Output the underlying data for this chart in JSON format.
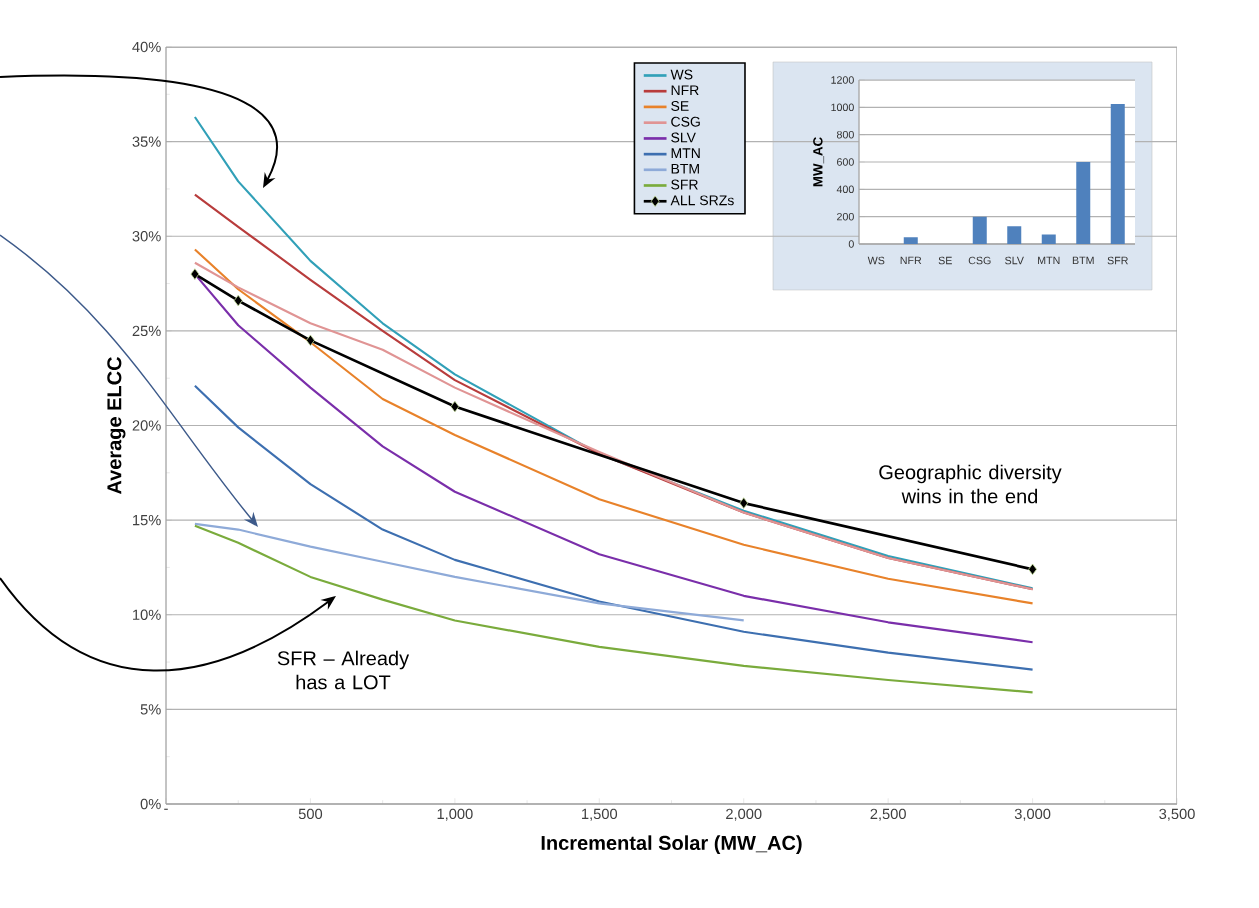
{
  "chart_data": [
    {
      "type": "line",
      "xlabel": "Incremental Solar (MW_AC)",
      "ylabel": "Average ELCC",
      "x": [
        100,
        250,
        500,
        750,
        1000,
        1500,
        2000,
        2500,
        3000
      ],
      "xlim": [
        0,
        3500
      ],
      "xticks": [
        {
          "value": 0,
          "label": "-"
        },
        500,
        {
          "value": 1000,
          "label": "1,000"
        },
        {
          "value": 1500,
          "label": "1,500"
        },
        {
          "value": 2000,
          "label": "2,000"
        },
        {
          "value": 2500,
          "label": "2,500"
        },
        {
          "value": 3000,
          "label": "3,000"
        },
        {
          "value": 3500,
          "label": "3,500"
        }
      ],
      "ylim": [
        0,
        40
      ],
      "yticks": [
        {
          "value": 0,
          "label": "0%"
        },
        {
          "value": 5,
          "label": "5%"
        },
        {
          "value": 10,
          "label": "10%"
        },
        {
          "value": 15,
          "label": "15%"
        },
        {
          "value": 20,
          "label": "20%"
        },
        {
          "value": 25,
          "label": "25%"
        },
        {
          "value": 30,
          "label": "30%"
        },
        {
          "value": 35,
          "label": "35%"
        },
        {
          "value": 40,
          "label": "40%"
        }
      ],
      "grid": "y",
      "legend": "top",
      "marker": "none",
      "line_style": "solid",
      "series": [
        {
          "name": "WS",
          "color": "#31a0b8",
          "values": [
            36.3,
            32.9,
            28.7,
            25.4,
            22.7,
            18.5,
            15.5,
            13.1,
            11.4
          ]
        },
        {
          "name": "NFR",
          "color": "#b83c3c",
          "values": [
            32.2,
            30.5,
            27.7,
            25.0,
            22.4,
            18.5,
            15.4,
            13.0,
            11.35
          ]
        },
        {
          "name": "SE",
          "color": "#e8822a",
          "values": [
            29.3,
            27.2,
            24.4,
            21.4,
            19.5,
            16.1,
            13.7,
            11.9,
            10.6
          ]
        },
        {
          "name": "CSG",
          "color": "#e09494",
          "values": [
            28.6,
            27.3,
            25.4,
            24.0,
            22.0,
            18.6,
            15.4,
            13.0,
            11.35
          ]
        },
        {
          "name": "SLV",
          "color": "#7a2eaa",
          "values": [
            28.0,
            25.3,
            22.0,
            18.9,
            16.5,
            13.2,
            11.0,
            9.6,
            8.55
          ]
        },
        {
          "name": "MTN",
          "color": "#3d6fb0",
          "values": [
            22.1,
            19.9,
            16.9,
            14.5,
            12.9,
            10.7,
            9.1,
            8.0,
            7.1
          ]
        },
        {
          "name": "BTM",
          "color": "#8eaad8",
          "x": [
            100,
            250,
            500,
            750,
            1000,
            1500,
            2000
          ],
          "values": [
            14.8,
            14.5,
            13.6,
            12.8,
            12.0,
            10.6,
            9.7
          ]
        },
        {
          "name": "SFR",
          "color": "#7aab3c",
          "values": [
            14.7,
            13.8,
            12.0,
            10.8,
            9.7,
            8.3,
            7.3,
            6.55,
            5.9
          ]
        },
        {
          "name": "ALL SRZs",
          "color": "#000000",
          "marker": "diamond",
          "x": [
            100,
            250,
            500,
            1000,
            2000,
            3000
          ],
          "values": [
            28.0,
            26.6,
            24.5,
            21.0,
            15.9,
            12.4
          ]
        }
      ],
      "annotations": [
        "Geographic diversity wins in the end",
        "SFR – Already has a LOT"
      ]
    },
    {
      "type": "bar",
      "ylabel": "MW_AC",
      "categories": [
        "WS",
        "NFR",
        "SE",
        "CSG",
        "SLV",
        "MTN",
        "BTM",
        "SFR"
      ],
      "values": [
        0,
        50,
        0,
        200,
        130,
        70,
        600,
        1025
      ],
      "color": "#4f81bd",
      "ylim": [
        0,
        1200
      ],
      "yticks": [
        0,
        200,
        400,
        600,
        800,
        1000,
        1200
      ],
      "grid": "y"
    }
  ]
}
